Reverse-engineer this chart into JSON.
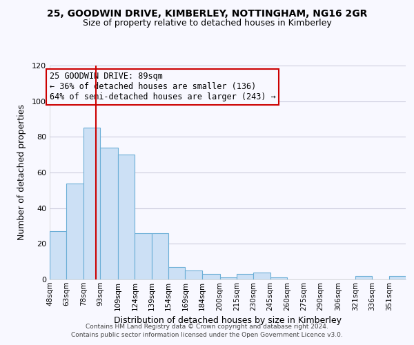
{
  "title1": "25, GOODWIN DRIVE, KIMBERLEY, NOTTINGHAM, NG16 2GR",
  "title2": "Size of property relative to detached houses in Kimberley",
  "xlabel": "Distribution of detached houses by size in Kimberley",
  "ylabel": "Number of detached properties",
  "footer1": "Contains HM Land Registry data © Crown copyright and database right 2024.",
  "footer2": "Contains public sector information licensed under the Open Government Licence v3.0.",
  "annotation_line1": "25 GOODWIN DRIVE: 89sqm",
  "annotation_line2": "← 36% of detached houses are smaller (136)",
  "annotation_line3": "64% of semi-detached houses are larger (243) →",
  "bar_edges": [
    48,
    63,
    78,
    93,
    109,
    124,
    139,
    154,
    169,
    184,
    200,
    215,
    230,
    245,
    260,
    275,
    290,
    306,
    321,
    336,
    351,
    366
  ],
  "bar_heights": [
    27,
    54,
    85,
    74,
    70,
    26,
    26,
    7,
    5,
    3,
    1,
    3,
    4,
    1,
    0,
    0,
    0,
    0,
    2,
    0,
    2
  ],
  "bar_color": "#cce0f5",
  "bar_edgecolor": "#6aaed6",
  "red_line_x": 89,
  "ylim": [
    0,
    120
  ],
  "yticks": [
    0,
    20,
    40,
    60,
    80,
    100,
    120
  ],
  "background_color": "#f8f8ff",
  "grid_color": "#ccccdd",
  "annotation_box_edgecolor": "#cc0000",
  "red_line_color": "#cc0000",
  "title1_fontsize": 10,
  "title2_fontsize": 9
}
